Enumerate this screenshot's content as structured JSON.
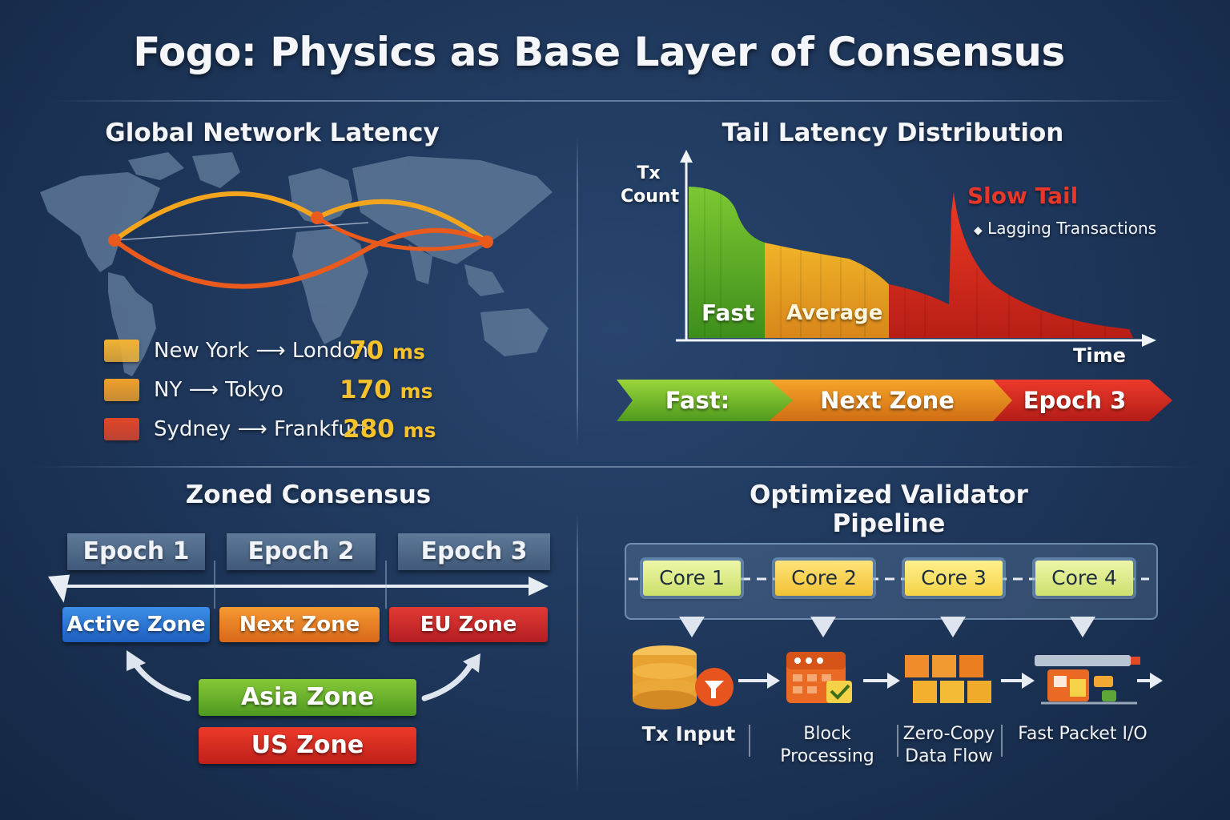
{
  "title": "Fogo: Physics as Base Layer of Consensus",
  "latency_section": {
    "title": "Global Network Latency",
    "routes": [
      {
        "route": "New York ⟶ London",
        "value": "70",
        "unit": "ms",
        "color": "#f2b233"
      },
      {
        "route": "NY ⟶ Tokyo",
        "value": "170",
        "unit": "ms",
        "color": "#f0a02a"
      },
      {
        "route": "Sydney ⟶ Frankfurt",
        "value": "280",
        "unit": "ms",
        "color": "#e2462a"
      }
    ]
  },
  "tail_section": {
    "title": "Tail Latency Distribution",
    "ylabel_line1": "Tx",
    "ylabel_line2": "Count",
    "xlabel": "Time",
    "region_fast": "Fast",
    "region_average": "Average",
    "slow_tail": "Slow Tail",
    "lagging": "Lagging Transactions",
    "banner": [
      "Fast:",
      "Next Zone",
      "Epoch 3"
    ],
    "colors": {
      "fast": "#5fb02a",
      "average": "#e6a020",
      "slow": "#dc2e22"
    }
  },
  "zoned_section": {
    "title": "Zoned Consensus",
    "epochs": [
      "Epoch 1",
      "Epoch 2",
      "Epoch 3"
    ],
    "zones_row": [
      "Active Zone",
      "Next Zone",
      "EU Zone"
    ],
    "asia_zone": "Asia Zone",
    "us_zone": "US Zone"
  },
  "pipeline_section": {
    "title": "Optimized Validator Pipeline",
    "cores": [
      "Core 1",
      "Core 2",
      "Core 3",
      "Core 4"
    ],
    "stages": [
      {
        "line1": "Tx Input",
        "line2": ""
      },
      {
        "line1": "Block Processing",
        "line2": ""
      },
      {
        "line1": "Zero-Copy",
        "line2": "Data Flow"
      },
      {
        "line1": "Fast Packet I/O",
        "line2": ""
      }
    ]
  }
}
